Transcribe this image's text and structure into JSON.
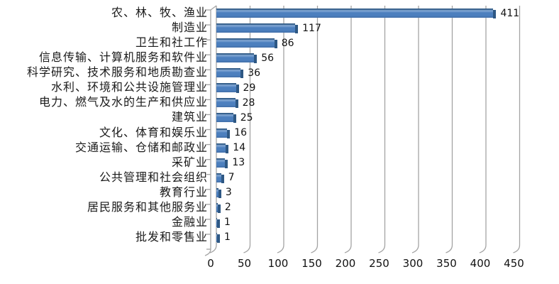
{
  "chart": {
    "background": "#ffffff",
    "text_color": "#1a1a1a",
    "grid_color": "#a3a3a3",
    "bar_colors": {
      "body": "#4c7fbe",
      "highlight": "#86aad6",
      "shadow": "#426fa8",
      "edge": "#2e5884"
    }
  },
  "chart_data": {
    "type": "bar",
    "orientation": "horizontal",
    "style": "excel-3d",
    "title": "",
    "xlabel": "",
    "ylabel": "",
    "xlim": [
      0,
      450
    ],
    "xticks": [
      0,
      50,
      100,
      150,
      200,
      250,
      300,
      350,
      400,
      450
    ],
    "grid": true,
    "legend": false,
    "data_labels": true,
    "categories": [
      "农、林、牧、渔业",
      "制造业",
      "卫生和社工作",
      "信息传输、计算机服务和软件业",
      "科学研究、技术服务和地质勘查业",
      "水利、环境和公共设施管理业",
      "电力、燃气及水的生产和供应业",
      "建筑业",
      "文化、体育和娱乐业",
      "交通运输、仓储和邮政业",
      "采矿业",
      "公共管理和社会组织",
      "教育行业",
      "居民服务和其他服务业",
      "金融业",
      "批发和零售业"
    ],
    "values": [
      411,
      117,
      86,
      56,
      36,
      29,
      28,
      25,
      16,
      14,
      13,
      7,
      3,
      2,
      1,
      1
    ]
  }
}
